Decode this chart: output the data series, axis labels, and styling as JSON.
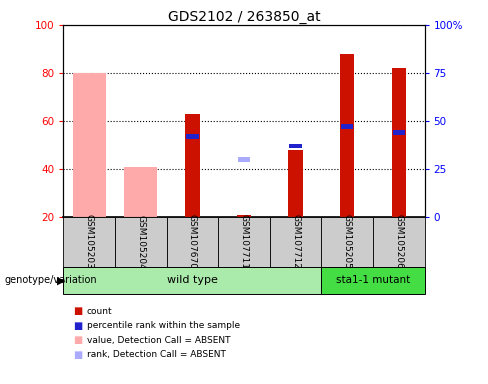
{
  "title": "GDS2102 / 263850_at",
  "samples": [
    "GSM105203",
    "GSM105204",
    "GSM107670",
    "GSM107711",
    "GSM107712",
    "GSM105205",
    "GSM105206"
  ],
  "wt_indices": [
    0,
    1,
    2,
    3,
    4
  ],
  "mut_indices": [
    5,
    6
  ],
  "wt_label": "wild type",
  "mut_label": "sta1-1 mutant",
  "count_values": [
    null,
    null,
    63,
    21,
    48,
    88,
    82
  ],
  "percentile_values": [
    null,
    null,
    42,
    null,
    37,
    47,
    44
  ],
  "absent_value_values": [
    80,
    41,
    null,
    null,
    null,
    null,
    null
  ],
  "absent_rank_values": [
    null,
    null,
    null,
    30,
    null,
    null,
    null
  ],
  "ylim_left": [
    20,
    100
  ],
  "ylim_right": [
    0,
    100
  ],
  "yticks_left": [
    20,
    40,
    60,
    80,
    100
  ],
  "yticks_right": [
    0,
    25,
    50,
    75,
    100
  ],
  "yticklabels_left": [
    "20",
    "40",
    "60",
    "80",
    "100"
  ],
  "yticklabels_right": [
    "0",
    "25",
    "50",
    "75",
    "100%"
  ],
  "color_count": "#cc1100",
  "color_percentile": "#2222cc",
  "color_absent_value": "#ffaaaa",
  "color_absent_rank": "#aaaaff",
  "color_wt_bg": "#aaeaaa",
  "color_mut_bg": "#44dd44",
  "color_sample_bg": "#cccccc",
  "bar_width": 0.4,
  "legend_labels": [
    "count",
    "percentile rank within the sample",
    "value, Detection Call = ABSENT",
    "rank, Detection Call = ABSENT"
  ],
  "legend_colors": [
    "#cc1100",
    "#2222cc",
    "#ffaaaa",
    "#aaaaff"
  ]
}
